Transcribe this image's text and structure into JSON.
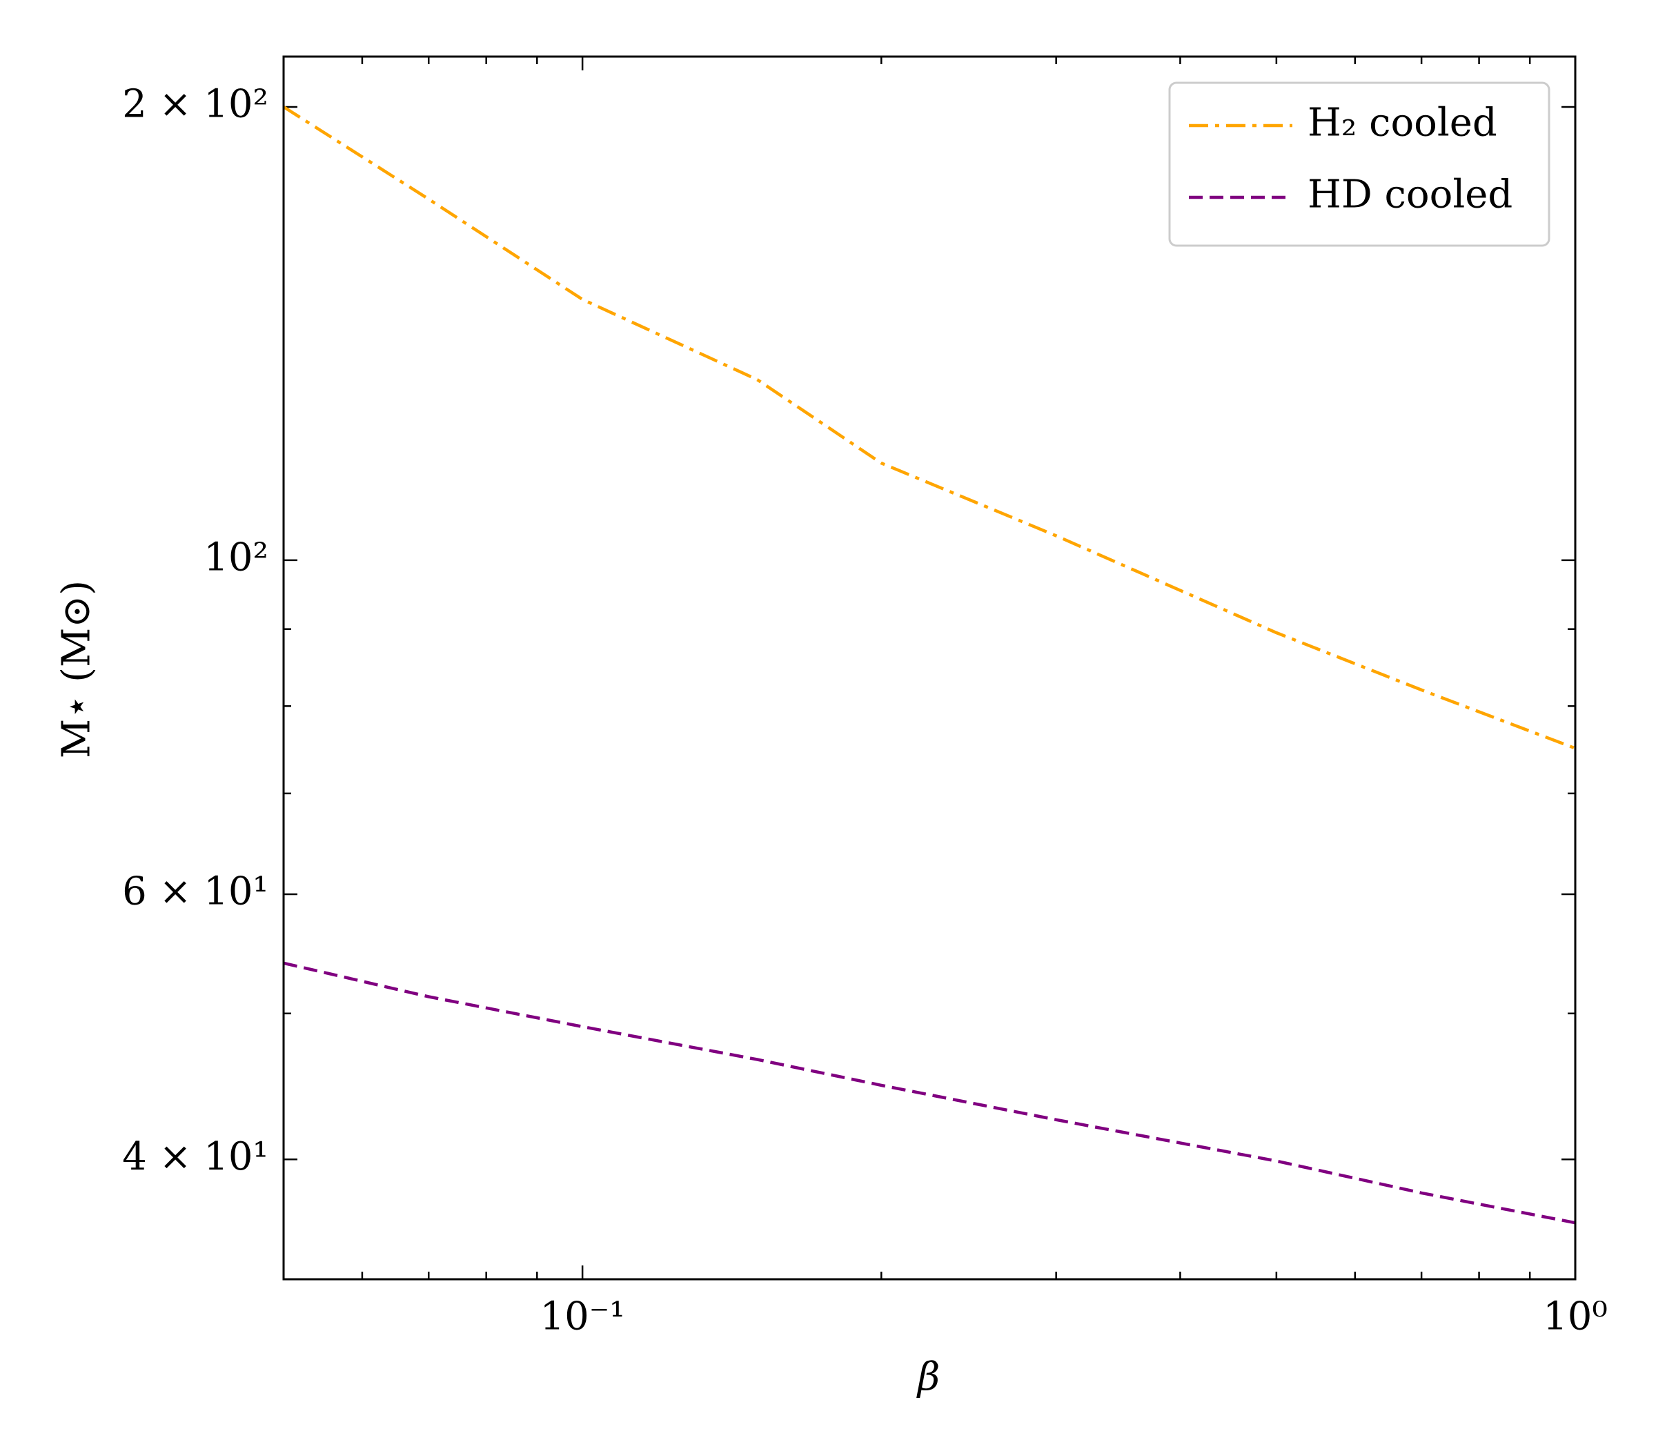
{
  "chart_data": {
    "type": "line",
    "xlabel": "β",
    "ylabel": "M⋆ (M⊙)",
    "xscale": "log",
    "yscale": "log",
    "xlim": [
      0.05,
      1
    ],
    "ylim": [
      33.3,
      216
    ],
    "xticks": [
      {
        "value": 0.1,
        "label": "10⁻¹"
      },
      {
        "value": 1,
        "label": "10⁰"
      }
    ],
    "xminorticks": [
      0.06,
      0.07,
      0.08,
      0.09,
      0.2,
      0.3,
      0.4,
      0.5,
      0.6,
      0.7,
      0.8,
      0.9
    ],
    "yticks": [
      {
        "value": 40,
        "label": "4 × 10¹"
      },
      {
        "value": 60,
        "label": "6 × 10¹"
      },
      {
        "value": 100,
        "label": "10²"
      },
      {
        "value": 200,
        "label": "2 × 10²"
      }
    ],
    "yminorticks": [
      50,
      70,
      80,
      90
    ],
    "legend": "upper right",
    "x": [
      0.05,
      0.07,
      0.1,
      0.15,
      0.2,
      0.3,
      0.5,
      0.7,
      1
    ],
    "series": [
      {
        "name": "H₂ cooled",
        "color": "#ffa500",
        "linestyle": "dashdot",
        "values": [
          200,
          173.7,
          149,
          131.8,
          116,
          103.8,
          89.5,
          82,
          75
        ]
      },
      {
        "name": "HD cooled",
        "color": "#800080",
        "linestyle": "dashed",
        "values": [
          54,
          51.3,
          49,
          46.6,
          44.8,
          42.5,
          39.9,
          38,
          36.3
        ]
      }
    ]
  }
}
